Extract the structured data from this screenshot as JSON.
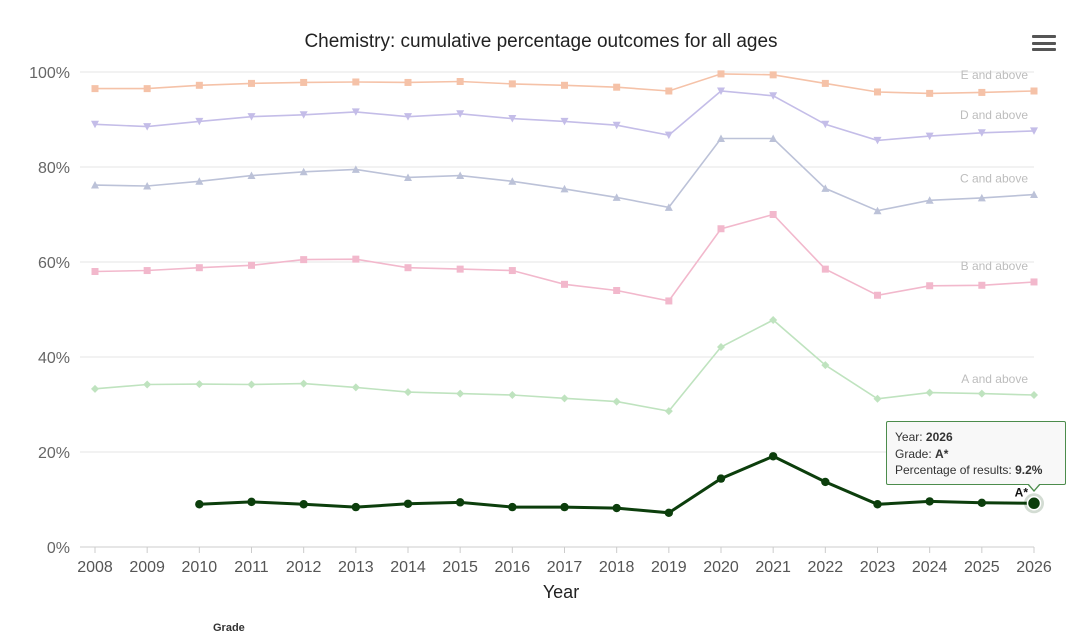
{
  "menu": {
    "icon": "hamburger-menu-icon"
  },
  "tooltip": {
    "year_label": "Year: ",
    "year_value": "2026",
    "grade_label": "Grade: ",
    "grade_value": "A*",
    "pct_label": "Percentage of results: ",
    "pct_value": "9.2%"
  },
  "legend_partial": "Grade",
  "chart_data": {
    "type": "line",
    "title": "Chemistry: cumulative percentage outcomes for all ages",
    "xlabel": "Year",
    "ylabel": "",
    "ylim": [
      0,
      100
    ],
    "y_ticks": [
      "0%",
      "20%",
      "40%",
      "60%",
      "80%",
      "100%"
    ],
    "categories": [
      "2008",
      "2009",
      "2010",
      "2011",
      "2012",
      "2013",
      "2014",
      "2015",
      "2016",
      "2017",
      "2018",
      "2019",
      "2020",
      "2021",
      "2022",
      "2023",
      "2024",
      "2025",
      "2026"
    ],
    "grid": true,
    "series": [
      {
        "name": "E and above",
        "color": "#f5c2a8",
        "marker": "square",
        "values": [
          96.5,
          96.5,
          97.2,
          97.6,
          97.8,
          97.9,
          97.8,
          98.0,
          97.5,
          97.2,
          96.8,
          96.0,
          99.6,
          99.4,
          97.6,
          95.8,
          95.5,
          95.7,
          96.0
        ]
      },
      {
        "name": "D and above",
        "color": "#c4bde8",
        "marker": "triangle-down",
        "values": [
          89.0,
          88.5,
          89.6,
          90.6,
          91.0,
          91.6,
          90.6,
          91.2,
          90.2,
          89.6,
          88.8,
          86.7,
          96.0,
          95.0,
          89.0,
          85.6,
          86.5,
          87.2,
          87.6
        ]
      },
      {
        "name": "C and above",
        "color": "#bcc2d8",
        "marker": "triangle",
        "values": [
          76.2,
          76.0,
          77.0,
          78.2,
          79.0,
          79.5,
          77.8,
          78.2,
          77.0,
          75.4,
          73.6,
          71.5,
          86.0,
          86.0,
          75.5,
          70.8,
          73.0,
          73.5,
          74.2
        ]
      },
      {
        "name": "B and above",
        "color": "#f2b8cc",
        "marker": "square",
        "values": [
          58.0,
          58.2,
          58.8,
          59.3,
          60.5,
          60.6,
          58.8,
          58.5,
          58.2,
          55.3,
          54.0,
          51.8,
          67.0,
          70.0,
          58.5,
          53.0,
          55.0,
          55.1,
          55.8
        ]
      },
      {
        "name": "A and above",
        "color": "#bfe3bf",
        "marker": "diamond",
        "values": [
          33.3,
          34.2,
          34.3,
          34.2,
          34.4,
          33.6,
          32.6,
          32.3,
          32.0,
          31.3,
          30.6,
          28.6,
          42.1,
          47.8,
          38.3,
          31.2,
          32.5,
          32.3,
          32.0
        ]
      },
      {
        "name": "A*",
        "color": "#0c3e0c",
        "marker": "circle",
        "highlighted": true,
        "values": [
          null,
          null,
          9.0,
          9.5,
          9.0,
          8.4,
          9.1,
          9.4,
          8.4,
          8.4,
          8.2,
          7.2,
          14.4,
          19.1,
          13.7,
          9.0,
          9.6,
          9.3,
          9.2
        ]
      }
    ]
  }
}
